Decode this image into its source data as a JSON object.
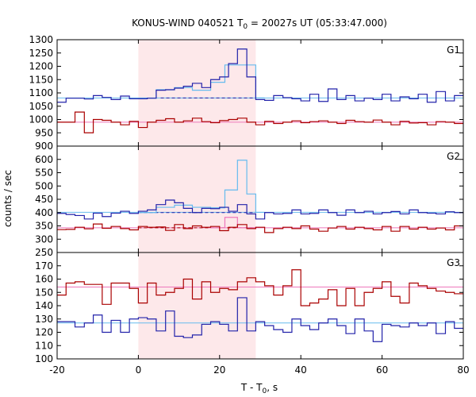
{
  "chart_data": {
    "type": "line",
    "title_main": "KONUS-WIND 040521 T",
    "title_sub": "0",
    "title_rest": " = 20027s UT (05:33:47.000)",
    "xlabel_main": "T - T",
    "xlabel_sub": "0",
    "xlabel_rest": ", s",
    "ylabel": "counts / sec",
    "xlim": [
      -20,
      80
    ],
    "xticks": [
      -20,
      0,
      20,
      40,
      60,
      80
    ],
    "highlight": {
      "from": 0,
      "to": 28.9,
      "color": "#fde8ea"
    },
    "colors": {
      "red": "#aa0000",
      "blue": "#2222aa",
      "light_blue": "#66bbee",
      "pink": "#ee77bb"
    },
    "panels": [
      {
        "label": "G1",
        "ylim": [
          900,
          1300
        ],
        "yticks": [
          900,
          950,
          1000,
          1050,
          1100,
          1150,
          1200,
          1250,
          1300
        ],
        "bin_edges": [
          -20,
          -17.8,
          -15.6,
          -13.3,
          -11.1,
          -8.9,
          -6.7,
          -4.4,
          -2.2,
          0,
          2.2,
          4.4,
          6.7,
          8.9,
          11.1,
          13.3,
          15.6,
          17.8,
          20,
          22.2,
          24.4,
          26.7,
          28.9,
          31.1,
          33.3,
          35.6,
          37.8,
          40,
          42.2,
          44.4,
          46.7,
          48.9,
          51.1,
          53.3,
          55.6,
          57.8,
          60,
          62.2,
          64.4,
          66.7,
          68.9,
          71.1,
          73.3,
          75.6,
          77.8,
          80
        ],
        "series": [
          {
            "color": "blue",
            "values": [
              1065,
              1080,
              1080,
              1077,
              1090,
              1083,
              1075,
              1088,
              1078,
              1078,
              1080,
              1110,
              1112,
              1118,
              1125,
              1136,
              1120,
              1150,
              1160,
              1210,
              1265,
              1160,
              1075,
              1072,
              1090,
              1082,
              1078,
              1070,
              1095,
              1068,
              1115,
              1075,
              1090,
              1070,
              1080,
              1075,
              1095,
              1070,
              1085,
              1078,
              1095,
              1065,
              1105,
              1070,
              1090
            ]
          },
          {
            "color": "red",
            "values": [
              990,
              990,
              1028,
              950,
              1000,
              997,
              990,
              980,
              993,
              970,
              990,
              997,
              1003,
              990,
              995,
              1005,
              992,
              988,
              996,
              1000,
              1005,
              990,
              980,
              993,
              985,
              990,
              995,
              988,
              992,
              995,
              990,
              985,
              997,
              992,
              990,
              998,
              990,
              980,
              993,
              987,
              988,
              980,
              992,
              990,
              985
            ]
          }
        ],
        "fits": [
          {
            "color": "light_blue",
            "style": "solid",
            "y": 1081,
            "x": [
              -20,
              80
            ]
          },
          {
            "color": "pink",
            "style": "solid",
            "y": 990,
            "x": [
              -20,
              80
            ]
          },
          {
            "color": "blue",
            "style": "dashed",
            "y": 1081,
            "x": [
              5.5,
              29
            ]
          }
        ],
        "steps": [
          {
            "color": "light_blue",
            "edges": [
              0,
              4.4,
              8.9,
              13.3,
              17.8,
              21.3,
              28.9,
              31.1
            ],
            "values": [
              1080,
              1112,
              1120,
              1110,
              1140,
              1205,
              1081
            ]
          }
        ]
      },
      {
        "label": "G2",
        "ylim": [
          250,
          650
        ],
        "yticks": [
          250,
          300,
          350,
          400,
          450,
          500,
          550,
          600
        ],
        "bin_edges": [
          -20,
          -17.8,
          -15.6,
          -13.3,
          -11.1,
          -8.9,
          -6.7,
          -4.4,
          -2.2,
          0,
          2.2,
          4.4,
          6.7,
          8.9,
          11.1,
          13.3,
          15.6,
          17.8,
          20,
          22.2,
          24.4,
          26.7,
          28.9,
          31.1,
          33.3,
          35.6,
          37.8,
          40,
          42.2,
          44.4,
          46.7,
          48.9,
          51.1,
          53.3,
          55.6,
          57.8,
          60,
          62.2,
          64.4,
          66.7,
          68.9,
          71.1,
          73.3,
          75.6,
          77.8,
          80
        ],
        "series": [
          {
            "color": "blue",
            "values": [
              397,
              393,
              389,
              376,
              398,
              385,
              398,
              405,
              397,
              405,
              410,
              430,
              447,
              437,
              416,
              400,
              416,
              415,
              420,
              405,
              430,
              395,
              376,
              400,
              395,
              397,
              410,
              395,
              397,
              410,
              400,
              390,
              410,
              400,
              405,
              395,
              400,
              404,
              395,
              410,
              400,
              398,
              395,
              403,
              400
            ]
          },
          {
            "color": "red",
            "values": [
              336,
              337,
              345,
              339,
              357,
              341,
              348,
              340,
              335,
              348,
              345,
              346,
              333,
              355,
              340,
              350,
              345,
              348,
              332,
              345,
              355,
              340,
              345,
              325,
              340,
              345,
              340,
              350,
              338,
              330,
              342,
              348,
              338,
              345,
              340,
              335,
              348,
              330,
              348,
              338,
              345,
              338,
              342,
              335,
              350
            ]
          }
        ],
        "fits": [
          {
            "color": "light_blue",
            "style": "solid",
            "y": 401,
            "x": [
              -20,
              80
            ]
          },
          {
            "color": "pink",
            "style": "solid",
            "y": 343,
            "x": [
              -20,
              80
            ]
          },
          {
            "color": "blue",
            "style": "dashed",
            "y": 400,
            "x": [
              0,
              29
            ]
          },
          {
            "color": "red",
            "style": "dashed",
            "y": 343,
            "x": [
              0,
              29
            ]
          }
        ],
        "steps": [
          {
            "color": "light_blue",
            "edges": [
              0,
              4.4,
              8.9,
              13.3,
              17.8,
              21.3,
              24.4,
              26.7,
              28.9,
              31.1
            ],
            "values": [
              400,
              420,
              428,
              420,
              418,
              485,
              597,
              470,
              401
            ]
          },
          {
            "color": "pink",
            "edges": [
              17.8,
              21.3,
              24.4,
              28.9
            ],
            "values": [
              343,
              382,
              343
            ]
          }
        ]
      },
      {
        "label": "G3",
        "ylim": [
          100,
          180
        ],
        "yticks": [
          100,
          110,
          120,
          130,
          140,
          150,
          160,
          170
        ],
        "bin_edges": [
          -20,
          -17.8,
          -15.6,
          -13.3,
          -11.1,
          -8.9,
          -6.7,
          -4.4,
          -2.2,
          0,
          2.2,
          4.4,
          6.7,
          8.9,
          11.1,
          13.3,
          15.6,
          17.8,
          20,
          22.2,
          24.4,
          26.7,
          28.9,
          31.1,
          33.3,
          35.6,
          37.8,
          40,
          42.2,
          44.4,
          46.7,
          48.9,
          51.1,
          53.3,
          55.6,
          57.8,
          60,
          62.2,
          64.4,
          66.7,
          68.9,
          71.1,
          73.3,
          75.6,
          77.8,
          80
        ],
        "series": [
          {
            "color": "blue",
            "values": [
              128,
              128,
              124,
              127,
              133,
              120,
              129,
              120,
              130,
              131,
              130,
              121,
              136,
              117,
              116,
              118,
              126,
              128,
              126,
              121,
              146,
              121,
              128,
              125,
              122,
              120,
              130,
              125,
              122,
              127,
              130,
              125,
              119,
              130,
              121,
              113,
              126,
              125,
              124,
              127,
              125,
              127,
              119,
              128,
              123
            ]
          },
          {
            "color": "red",
            "values": [
              148,
              157,
              158,
              156,
              156,
              141,
              157,
              157,
              153,
              142,
              157,
              148,
              150,
              153,
              160,
              145,
              158,
              150,
              153,
              152,
              158,
              161,
              158,
              155,
              148,
              155,
              167,
              140,
              142,
              145,
              152,
              140,
              153,
              140,
              150,
              153,
              158,
              147,
              142,
              157,
              155,
              153,
              151,
              150,
              149
            ]
          }
        ],
        "fits": [
          {
            "color": "light_blue",
            "style": "solid",
            "y": 127,
            "x": [
              -20,
              80
            ]
          },
          {
            "color": "pink",
            "style": "solid",
            "y": 154,
            "x": [
              -20,
              80
            ]
          }
        ],
        "steps": []
      }
    ]
  }
}
